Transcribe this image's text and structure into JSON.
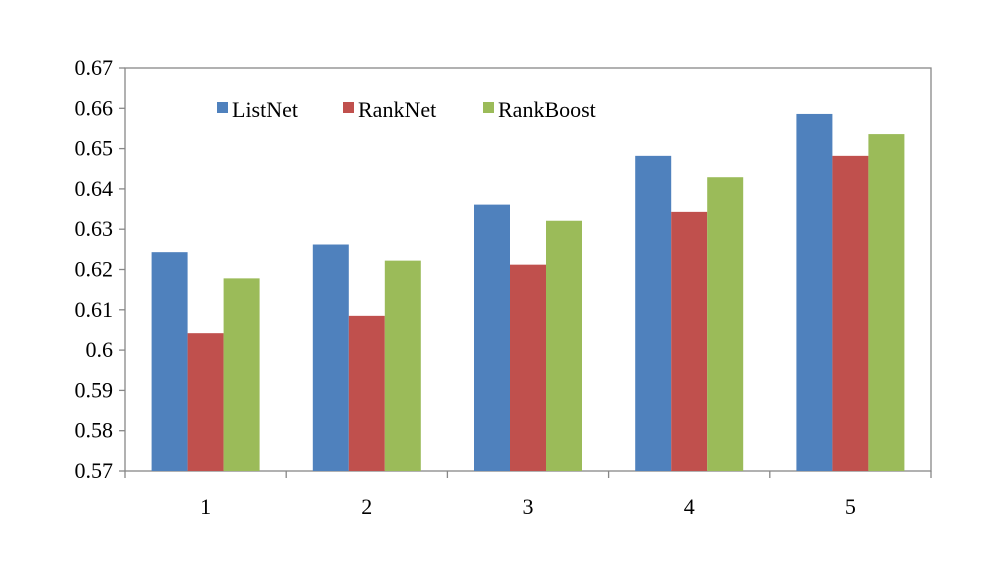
{
  "chart_data": {
    "type": "bar",
    "title": "",
    "xlabel": "",
    "ylabel": "",
    "categories": [
      "1",
      "2",
      "3",
      "4",
      "5"
    ],
    "ylim": [
      0.57,
      0.67
    ],
    "yticks": [
      0.57,
      0.58,
      0.59,
      0.6,
      0.61,
      0.62,
      0.63,
      0.64,
      0.65,
      0.66,
      0.67
    ],
    "ytick_labels": [
      "0.57",
      "0.58",
      "0.59",
      "0.6",
      "0.61",
      "0.62",
      "0.63",
      "0.64",
      "0.65",
      "0.66",
      "0.67"
    ],
    "grid": false,
    "legend_position": "top-left, horizontal, inside plot",
    "series": [
      {
        "name": "ListNet",
        "color": "#4F81BD",
        "values": [
          0.6243,
          0.6262,
          0.6361,
          0.6482,
          0.6586
        ]
      },
      {
        "name": "RankNet",
        "color": "#C0504D",
        "values": [
          0.6042,
          0.6085,
          0.6212,
          0.6343,
          0.6482
        ]
      },
      {
        "name": "RankBoost",
        "color": "#9BBB59",
        "values": [
          0.6178,
          0.6222,
          0.6321,
          0.6429,
          0.6536
        ]
      }
    ]
  }
}
